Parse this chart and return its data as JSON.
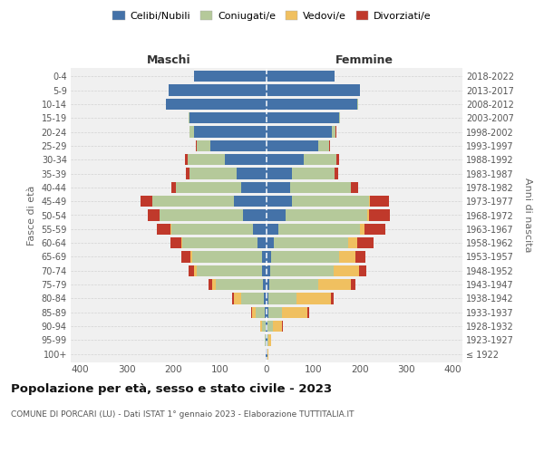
{
  "age_groups": [
    "100+",
    "95-99",
    "90-94",
    "85-89",
    "80-84",
    "75-79",
    "70-74",
    "65-69",
    "60-64",
    "55-59",
    "50-54",
    "45-49",
    "40-44",
    "35-39",
    "30-34",
    "25-29",
    "20-24",
    "15-19",
    "10-14",
    "5-9",
    "0-4"
  ],
  "birth_years": [
    "≤ 1922",
    "1923-1927",
    "1928-1932",
    "1933-1937",
    "1938-1942",
    "1943-1947",
    "1948-1952",
    "1953-1957",
    "1958-1962",
    "1963-1967",
    "1968-1972",
    "1973-1977",
    "1978-1982",
    "1983-1987",
    "1988-1992",
    "1993-1997",
    "1998-2002",
    "2003-2007",
    "2008-2012",
    "2013-2017",
    "2018-2022"
  ],
  "male": {
    "celibe": [
      1,
      1,
      2,
      3,
      5,
      8,
      10,
      10,
      20,
      30,
      50,
      70,
      55,
      65,
      90,
      120,
      155,
      165,
      215,
      210,
      155
    ],
    "coniugato": [
      0,
      2,
      8,
      20,
      50,
      100,
      140,
      150,
      160,
      175,
      180,
      175,
      140,
      100,
      80,
      30,
      10,
      3,
      1,
      0,
      0
    ],
    "vedovo": [
      0,
      1,
      3,
      8,
      15,
      8,
      5,
      3,
      2,
      1,
      0,
      0,
      0,
      0,
      0,
      0,
      0,
      0,
      0,
      0,
      0
    ],
    "divorziato": [
      0,
      0,
      0,
      2,
      3,
      8,
      12,
      20,
      25,
      30,
      25,
      25,
      10,
      8,
      5,
      2,
      1,
      0,
      0,
      0,
      0
    ]
  },
  "female": {
    "nubile": [
      1,
      1,
      2,
      3,
      4,
      5,
      8,
      10,
      15,
      25,
      40,
      55,
      50,
      55,
      80,
      110,
      140,
      155,
      195,
      200,
      145
    ],
    "coniugata": [
      0,
      3,
      12,
      30,
      60,
      105,
      135,
      145,
      160,
      175,
      175,
      165,
      130,
      90,
      70,
      25,
      8,
      2,
      1,
      0,
      0
    ],
    "vedova": [
      2,
      5,
      20,
      55,
      75,
      70,
      55,
      35,
      20,
      10,
      5,
      2,
      1,
      0,
      0,
      0,
      0,
      0,
      0,
      0,
      0
    ],
    "divorziata": [
      0,
      0,
      1,
      3,
      5,
      10,
      15,
      22,
      35,
      45,
      45,
      40,
      15,
      8,
      5,
      2,
      1,
      0,
      0,
      0,
      0
    ]
  },
  "colors": {
    "celibe": "#4472a8",
    "coniugato": "#b5c99a",
    "vedovo": "#f0c060",
    "divorziato": "#c0392b"
  },
  "legend_labels": [
    "Celibi/Nubili",
    "Coniugati/e",
    "Vedovi/e",
    "Divorziati/e"
  ],
  "title": "Popolazione per età, sesso e stato civile - 2023",
  "subtitle": "COMUNE DI PORCARI (LU) - Dati ISTAT 1° gennaio 2023 - Elaborazione TUTTITALIA.IT",
  "xlabel_left": "Maschi",
  "xlabel_right": "Femmine",
  "ylabel_left": "Fasce di età",
  "ylabel_right": "Anni di nascita",
  "xlim": 420,
  "plot_bg": "#f0f0f0",
  "fig_bg": "#ffffff",
  "grid_color": "#cccccc"
}
